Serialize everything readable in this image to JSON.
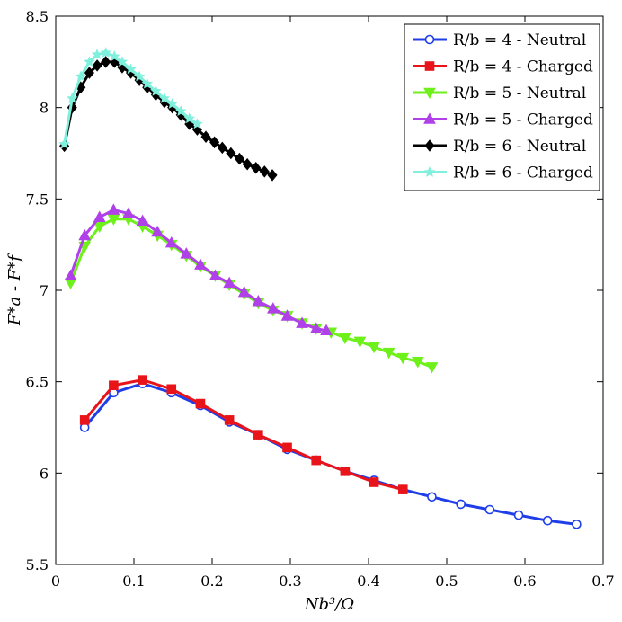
{
  "chart_data": {
    "type": "line",
    "xlabel": "Nb³/Ω",
    "ylabel": "F*a - F*f",
    "xlim": [
      0,
      0.7
    ],
    "ylim": [
      5.5,
      8.5
    ],
    "xticks": [
      "0",
      "0.1",
      "0.2",
      "0.3",
      "0.4",
      "0.5",
      "0.6",
      "0.7"
    ],
    "yticks": [
      "5.5",
      "6",
      "6.5",
      "7",
      "7.5",
      "8",
      "8.5"
    ],
    "legend_position": "top-right",
    "grid": false,
    "series": [
      {
        "name": "R/b = 4 - Neutral",
        "color": "#1f3ee8",
        "marker": "circle",
        "x": [
          0.037,
          0.074,
          0.111,
          0.148,
          0.185,
          0.222,
          0.259,
          0.296,
          0.333,
          0.37,
          0.407,
          0.444,
          0.481,
          0.518,
          0.555,
          0.592,
          0.629,
          0.666
        ],
        "y": [
          6.25,
          6.44,
          6.49,
          6.44,
          6.37,
          6.28,
          6.21,
          6.13,
          6.07,
          6.01,
          5.96,
          5.91,
          5.87,
          5.83,
          5.8,
          5.77,
          5.74,
          5.72
        ]
      },
      {
        "name": "R/b = 4 - Charged",
        "color": "#e8141a",
        "marker": "square",
        "x": [
          0.037,
          0.074,
          0.111,
          0.148,
          0.185,
          0.222,
          0.259,
          0.296,
          0.333,
          0.37,
          0.407,
          0.444
        ],
        "y": [
          6.29,
          6.48,
          6.51,
          6.46,
          6.38,
          6.29,
          6.21,
          6.14,
          6.07,
          6.01,
          5.95,
          5.91
        ]
      },
      {
        "name": "R/b = 5 - Neutral",
        "color": "#6ef01a",
        "marker": "triangle-down",
        "x": [
          0.019,
          0.037,
          0.056,
          0.074,
          0.093,
          0.111,
          0.13,
          0.148,
          0.167,
          0.185,
          0.204,
          0.222,
          0.241,
          0.259,
          0.278,
          0.296,
          0.315,
          0.333,
          0.352,
          0.37,
          0.389,
          0.407,
          0.426,
          0.444,
          0.463,
          0.481
        ],
        "y": [
          7.04,
          7.24,
          7.35,
          7.39,
          7.39,
          7.35,
          7.3,
          7.25,
          7.19,
          7.13,
          7.08,
          7.03,
          6.98,
          6.93,
          6.89,
          6.86,
          6.82,
          6.79,
          6.77,
          6.74,
          6.72,
          6.69,
          6.66,
          6.63,
          6.61,
          6.58
        ]
      },
      {
        "name": "R/b = 5 - Charged",
        "color": "#b040e8",
        "marker": "triangle-up",
        "x": [
          0.019,
          0.037,
          0.056,
          0.074,
          0.093,
          0.111,
          0.13,
          0.148,
          0.167,
          0.185,
          0.204,
          0.222,
          0.241,
          0.259,
          0.278,
          0.296,
          0.315,
          0.333,
          0.346
        ],
        "y": [
          7.08,
          7.3,
          7.4,
          7.44,
          7.42,
          7.38,
          7.32,
          7.26,
          7.2,
          7.14,
          7.08,
          7.04,
          6.99,
          6.94,
          6.9,
          6.86,
          6.82,
          6.79,
          6.78
        ]
      },
      {
        "name": "R/b = 6 - Neutral",
        "color": "#000000",
        "marker": "diamond",
        "x": [
          0.011,
          0.021,
          0.032,
          0.043,
          0.053,
          0.064,
          0.075,
          0.085,
          0.096,
          0.107,
          0.117,
          0.128,
          0.139,
          0.149,
          0.16,
          0.171,
          0.181,
          0.192,
          0.203,
          0.213,
          0.224,
          0.235,
          0.245,
          0.256,
          0.267,
          0.277
        ],
        "y": [
          7.79,
          8.0,
          8.11,
          8.19,
          8.23,
          8.25,
          8.25,
          8.22,
          8.19,
          8.15,
          8.11,
          8.07,
          8.03,
          8.0,
          7.96,
          7.91,
          7.88,
          7.84,
          7.81,
          7.78,
          7.75,
          7.72,
          7.69,
          7.67,
          7.65,
          7.63
        ]
      },
      {
        "name": "R/b = 6 - Charged",
        "color": "#7ef0dc",
        "marker": "star",
        "x": [
          0.011,
          0.021,
          0.032,
          0.043,
          0.053,
          0.064,
          0.075,
          0.085,
          0.096,
          0.107,
          0.117,
          0.128,
          0.139,
          0.149,
          0.16,
          0.171,
          0.181
        ],
        "y": [
          7.8,
          8.05,
          8.17,
          8.25,
          8.29,
          8.3,
          8.28,
          8.25,
          8.21,
          8.17,
          8.13,
          8.09,
          8.05,
          8.02,
          7.98,
          7.94,
          7.91
        ]
      }
    ]
  }
}
